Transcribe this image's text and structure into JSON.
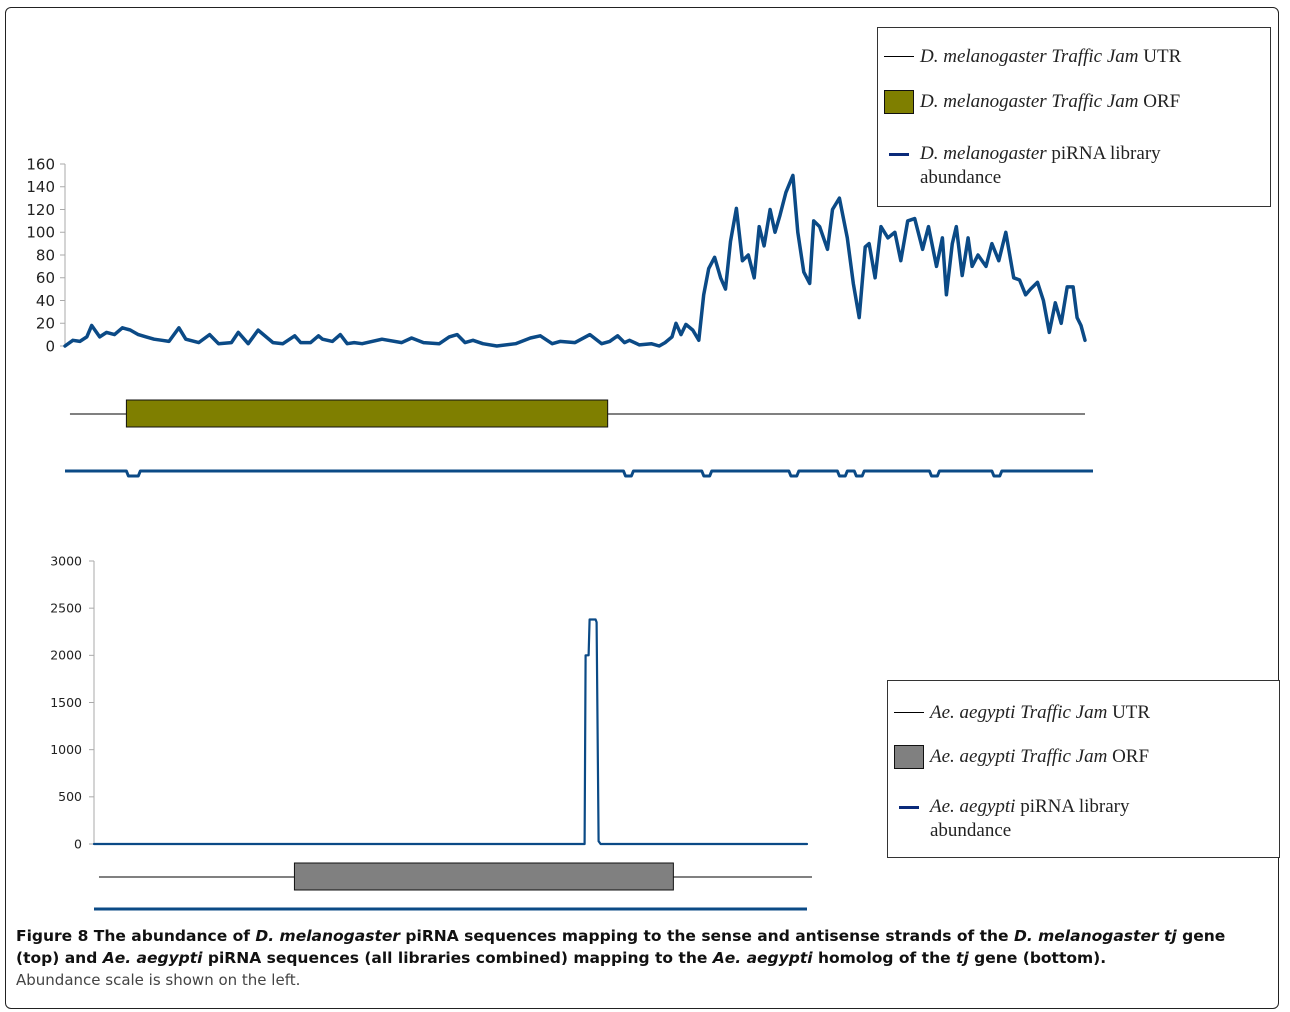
{
  "chart_data": [
    {
      "type": "line",
      "name": "top",
      "ylim": [
        0,
        160
      ],
      "yticks": [
        0,
        20,
        40,
        60,
        80,
        100,
        120,
        140,
        160
      ],
      "xlim": [
        0,
        1030
      ],
      "series": [
        {
          "name": "D. melanogaster piRNA library abundance",
          "x": [
            0,
            8,
            15,
            22,
            27,
            35,
            42,
            50,
            58,
            66,
            74,
            82,
            90,
            98,
            105,
            115,
            122,
            135,
            146,
            155,
            168,
            175,
            185,
            195,
            210,
            220,
            232,
            238,
            248,
            256,
            260,
            270,
            278,
            285,
            292,
            300,
            320,
            340,
            350,
            362,
            378,
            388,
            396,
            404,
            412,
            422,
            436,
            455,
            470,
            480,
            492,
            500,
            515,
            530,
            542,
            550,
            558,
            565,
            570,
            580,
            592,
            600,
            606,
            613,
            617,
            622,
            627,
            634,
            640,
            645,
            650,
            656,
            662,
            667,
            672,
            678,
            684,
            690,
            696,
            701,
            706,
            712,
            717,
            722,
            728,
            735,
            740,
            746,
            752,
            756,
            762,
            770,
            775,
            782,
            790,
            796,
            802,
            808,
            812,
            818,
            824,
            831,
            838,
            844,
            851,
            858,
            866,
            872,
            880,
            886,
            890,
            896,
            900,
            906,
            912,
            916,
            922,
            930,
            936,
            943,
            950,
            958,
            964,
            970,
            975,
            982,
            988,
            994,
            1000,
            1006,
            1012,
            1018,
            1022,
            1026,
            1030
          ],
          "y": [
            0,
            5,
            4,
            8,
            18,
            8,
            12,
            10,
            16,
            14,
            10,
            8,
            6,
            5,
            4,
            16,
            6,
            3,
            10,
            2,
            3,
            12,
            2,
            14,
            3,
            2,
            9,
            3,
            3,
            9,
            6,
            4,
            10,
            2,
            3,
            2,
            6,
            3,
            7,
            3,
            2,
            8,
            10,
            3,
            5,
            2,
            0,
            2,
            7,
            9,
            2,
            4,
            3,
            10,
            2,
            4,
            9,
            3,
            5,
            1,
            2,
            0,
            3,
            8,
            20,
            10,
            19,
            14,
            5,
            45,
            68,
            78,
            60,
            50,
            92,
            121,
            75,
            80,
            60,
            105,
            88,
            120,
            100,
            115,
            135,
            150,
            100,
            65,
            55,
            110,
            105,
            85,
            120,
            130,
            95,
            55,
            25,
            87,
            90,
            60,
            105,
            95,
            100,
            75,
            110,
            112,
            85,
            105,
            70,
            95,
            45,
            90,
            105,
            62,
            95,
            70,
            80,
            70,
            90,
            75,
            100,
            60,
            58,
            45,
            50,
            56,
            40,
            12,
            38,
            20,
            52,
            52,
            25,
            18,
            5
          ]
        }
      ],
      "annotation_track": {
        "xlim": [
          0,
          1030
        ],
        "utr_range": [
          5,
          1030
        ],
        "orf_range": [
          62,
          548
        ],
        "orf_color": "#7f7f00",
        "antisense_dips": [
          [
            62,
            76
          ],
          [
            564,
            574
          ],
          [
            643,
            653
          ],
          [
            731,
            741
          ],
          [
            780,
            790
          ],
          [
            797,
            807
          ],
          [
            873,
            883
          ],
          [
            936,
            946
          ]
        ]
      }
    },
    {
      "type": "line",
      "name": "bottom",
      "ylim": [
        0,
        3000
      ],
      "yticks": [
        0,
        500,
        1000,
        1500,
        2000,
        2500,
        3000
      ],
      "xlim": [
        0,
        715
      ],
      "series": [
        {
          "name": "Ae. aegypti piRNA library abundance",
          "x": [
            0,
            492,
            493,
            496,
            497,
            500,
            503,
            504,
            506,
            508,
            715
          ],
          "y": [
            0,
            0,
            2000,
            2000,
            2380,
            2380,
            2380,
            2350,
            30,
            0,
            0
          ]
        }
      ],
      "annotation_track": {
        "xlim": [
          0,
          715
        ],
        "utr_range": [
          5,
          720
        ],
        "orf_range": [
          201,
          581
        ],
        "orf_color": "#808080"
      }
    }
  ],
  "legend_top": {
    "utr": {
      "species": "D. melanogaster",
      "gene": "Traffic Jam",
      "suffix": "UTR"
    },
    "orf": {
      "species": "D. melanogaster",
      "gene": "Traffic Jam",
      "suffix": "ORF"
    },
    "pirna": {
      "species": "D. melanogaster",
      "suffix": "piRNA library",
      "line2": "abundance"
    },
    "orf_color": "#7f7f00",
    "pirna_color": "#0a2a7a"
  },
  "legend_bottom": {
    "utr": {
      "species": "Ae. aegypti",
      "gene": "Traffic Jam",
      "suffix": "UTR"
    },
    "orf": {
      "species": "Ae. aegypti",
      "gene": "Traffic Jam",
      "suffix": "ORF"
    },
    "pirna": {
      "species": "Ae. aegypti",
      "suffix": "piRNA library",
      "line2": "abundance"
    },
    "orf_color": "#808080",
    "pirna_color": "#0a2a7a"
  },
  "caption": {
    "label": "Figure 8",
    "parts": [
      {
        "t": "The abundance of ",
        "i": false
      },
      {
        "t": "D. melanogaster",
        "i": true
      },
      {
        "t": " piRNA sequences mapping to the sense and antisense strands of the ",
        "i": false
      },
      {
        "t": "D. melanogaster tj",
        "i": true
      },
      {
        "t": " gene (top) and ",
        "i": false
      },
      {
        "t": "Ae. aegypti",
        "i": true
      },
      {
        "t": " piRNA sequences (all libraries combined) mapping to the ",
        "i": false
      },
      {
        "t": "Ae. aegypti",
        "i": true
      },
      {
        "t": " homolog of the ",
        "i": false
      },
      {
        "t": "tj",
        "i": true
      },
      {
        "t": " gene (bottom)",
        "i": false
      }
    ],
    "note": "Abundance scale is shown on the left."
  },
  "colors": {
    "line": "#0b4a86",
    "text": "#222222"
  }
}
